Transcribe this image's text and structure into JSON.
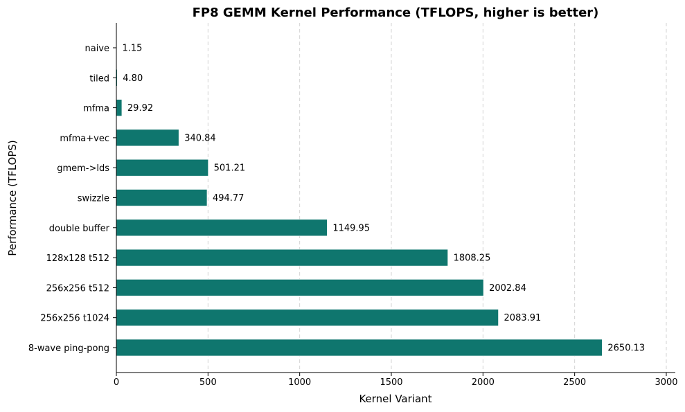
{
  "chart_data": {
    "type": "bar",
    "orientation": "horizontal",
    "title": "FP8 GEMM Kernel Performance (TFLOPS, higher is better)",
    "xlabel": "Kernel Variant",
    "ylabel": "Performance (TFLOPS)",
    "categories": [
      "naive",
      "tiled",
      "mfma",
      "mfma+vec",
      "gmem->lds",
      "swizzle",
      "double buffer",
      "128x128 t512",
      "256x256 t512",
      "256x256 t1024",
      "8-wave ping-pong"
    ],
    "values": [
      1.15,
      4.8,
      29.92,
      340.84,
      501.21,
      494.77,
      1149.95,
      1808.25,
      2002.84,
      2083.91,
      2650.13
    ],
    "data_labels": [
      "1.15",
      "4.80",
      "29.92",
      "340.84",
      "501.21",
      "494.77",
      "1149.95",
      "1808.25",
      "2002.84",
      "2083.91",
      "2650.13"
    ],
    "xlim": [
      0,
      3000
    ],
    "xticks": [
      0,
      500,
      1000,
      1500,
      2000,
      2500,
      3000
    ],
    "xtick_labels": [
      "0",
      "500",
      "1000",
      "1500",
      "2000",
      "2500",
      "3000"
    ],
    "grid": "x-dashed",
    "bar_color": "#0f766e"
  }
}
